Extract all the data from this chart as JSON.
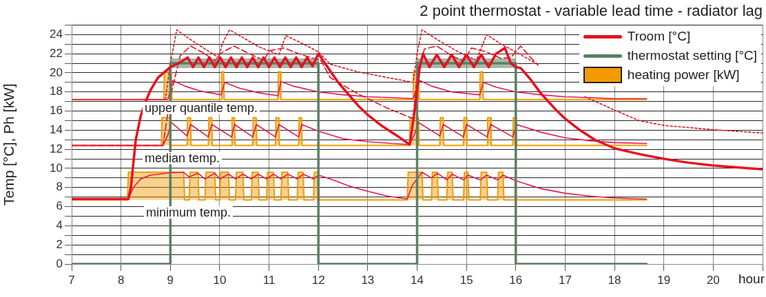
{
  "chart_data": {
    "type": "line",
    "title": "2 point thermostat - variable lead time - radiator lag",
    "xlabel": "hour",
    "ylabel": "Temp [°C], Ph [kW]",
    "xlim": [
      7,
      21
    ],
    "xticks": [
      7,
      8,
      9,
      10,
      11,
      12,
      13,
      14,
      15,
      16,
      17,
      18,
      19,
      20,
      {
        "value": 21,
        "label": null
      }
    ],
    "ylim": [
      0,
      25
    ],
    "yticks": [
      0,
      {
        "value": 1,
        "label": null
      },
      2,
      {
        "value": 3,
        "label": null
      },
      4,
      {
        "value": 5,
        "label": null
      },
      6,
      {
        "value": 7,
        "label": null
      },
      8,
      {
        "value": 9,
        "label": null
      },
      10,
      {
        "value": 11,
        "label": null
      },
      12,
      {
        "value": 13,
        "label": null
      },
      14,
      {
        "value": 15,
        "label": null
      },
      16,
      {
        "value": 17,
        "label": null
      },
      18,
      {
        "value": 19,
        "label": null
      },
      20,
      {
        "value": 21,
        "label": null
      },
      22,
      {
        "value": 23,
        "label": null
      },
      24,
      {
        "value": 25,
        "label": null
      }
    ],
    "grid": true,
    "legend": "top right",
    "marker": "none",
    "annotations": [
      "upper quantile temp.",
      "median temp.",
      "minimum temp."
    ],
    "series": [
      {
        "name": "Troom [°C]",
        "color": "#e8101e",
        "x": [
          7,
          8.15,
          8.2,
          8.3,
          8.4,
          8.5,
          8.6,
          8.75,
          9.0,
          9.2,
          9.35,
          9.46,
          9.57,
          9.68,
          9.79,
          9.9,
          10.01,
          10.12,
          10.23,
          10.34,
          10.45,
          10.56,
          10.67,
          10.78,
          10.89,
          11.0,
          11.11,
          11.22,
          11.33,
          11.44,
          11.55,
          11.66,
          11.77,
          11.88,
          12.0,
          12.2,
          12.4,
          12.6,
          12.8,
          13.0,
          13.3,
          13.6,
          13.85,
          13.95,
          14.05,
          14.12,
          14.25,
          14.4,
          14.55,
          14.7,
          14.85,
          15.0,
          15.15,
          15.3,
          15.45,
          15.6,
          15.78,
          15.9,
          16.0,
          16.1,
          16.3,
          16.5,
          16.8,
          17.0,
          17.3,
          17.6,
          18.0,
          18.5,
          19.0,
          19.5,
          20.0,
          20.5,
          21.0
        ],
        "values": [
          6.8,
          6.8,
          8,
          13,
          15.5,
          17,
          18.2,
          19.5,
          20.6,
          21.1,
          21.6,
          20.6,
          21.6,
          20.6,
          21.6,
          20.6,
          21.6,
          20.6,
          21.6,
          20.6,
          21.6,
          20.6,
          21.6,
          20.6,
          21.6,
          20.6,
          21.6,
          20.6,
          21.6,
          20.6,
          21.6,
          20.6,
          21.6,
          20.7,
          22.0,
          20.5,
          19.0,
          17.8,
          16.6,
          15.6,
          14.4,
          13.4,
          12.5,
          16,
          20.5,
          22.0,
          20.6,
          21.9,
          20.6,
          21.9,
          20.6,
          21.9,
          20.6,
          21.9,
          20.6,
          22.0,
          22.6,
          21.0,
          20.6,
          20.5,
          19.3,
          17.9,
          16.2,
          15.2,
          14.0,
          13.0,
          12.1,
          11.5,
          11.0,
          10.6,
          10.3,
          10.1,
          9.9
        ]
      },
      {
        "name": "thermostat setting [°C]",
        "color": "#5a8064",
        "x": [
          7,
          9,
          9,
          12,
          12,
          14,
          14,
          16,
          16,
          18.65
        ],
        "values": [
          0,
          0,
          21,
          21,
          0,
          0,
          21,
          21,
          0,
          0
        ],
        "lower": [
          null,
          null,
          20.5,
          20.5,
          null,
          null,
          20.5,
          20.5,
          null,
          null
        ],
        "upper": [
          null,
          null,
          21.5,
          21.5,
          null,
          null,
          21.5,
          21.5,
          null,
          null
        ]
      },
      {
        "color": "#e6194b",
        "x": [
          7,
          8.95,
          9.05,
          9.3,
          9.6,
          10.03,
          10.1,
          10.4,
          10.8,
          11.18,
          11.24,
          11.5,
          12.0,
          12.5,
          13.0,
          13.5,
          13.92,
          14.05,
          14.3,
          14.7,
          15.27,
          15.34,
          15.6,
          16.0,
          16.5,
          17.0,
          17.5,
          18.0,
          18.65
        ],
        "values": [
          17.2,
          17.2,
          19.2,
          18.6,
          18.1,
          17.7,
          19.0,
          18.4,
          17.9,
          17.6,
          19.1,
          18.6,
          18.0,
          17.7,
          17.5,
          17.4,
          17.3,
          19.2,
          18.6,
          18.0,
          17.7,
          19.0,
          18.5,
          18.0,
          17.7,
          17.5,
          17.4,
          17.3,
          17.3
        ]
      },
      {
        "color": "#e6194b",
        "x": [
          7,
          8.85,
          8.95,
          9.02,
          9.34,
          9.41,
          9.77,
          9.84,
          10.24,
          10.3,
          10.67,
          10.74,
          11.13,
          11.2,
          11.6,
          11.66,
          12.0,
          12.5,
          13.0,
          13.5,
          13.85,
          13.95,
          14.03,
          14.46,
          14.53,
          14.94,
          15.0,
          15.42,
          15.49,
          15.94,
          16.01,
          16.5,
          17.0,
          17.5,
          18.0,
          18.65
        ],
        "values": [
          12.4,
          12.4,
          13.5,
          14.8,
          13.4,
          14.6,
          13.3,
          14.6,
          13.3,
          14.6,
          13.3,
          14.6,
          13.3,
          14.6,
          13.3,
          14.6,
          13.9,
          13.1,
          12.8,
          12.6,
          12.5,
          13.6,
          14.8,
          13.4,
          14.6,
          13.3,
          14.6,
          13.3,
          14.6,
          13.3,
          14.6,
          13.8,
          13.2,
          12.9,
          12.7,
          12.6
        ]
      },
      {
        "color": "#e6194b",
        "x": [
          7,
          8.15,
          8.25,
          8.4,
          8.6,
          9.0,
          9.27,
          9.38,
          9.56,
          9.7,
          9.9,
          10.0,
          10.18,
          10.32,
          10.47,
          10.64,
          10.78,
          10.95,
          11.09,
          11.24,
          11.38,
          11.57,
          11.69,
          11.9,
          12.0,
          12.3,
          12.6,
          13.0,
          13.4,
          13.8,
          13.9,
          14.1,
          14.29,
          14.41,
          14.6,
          14.71,
          14.94,
          15.03,
          15.28,
          15.41,
          15.63,
          15.74,
          16.0,
          16.5,
          17.0,
          17.5,
          18.0,
          18.65
        ],
        "values": [
          6.8,
          6.8,
          8.0,
          8.9,
          9.3,
          9.55,
          9.6,
          9.1,
          9.5,
          8.9,
          9.5,
          8.9,
          9.4,
          8.9,
          9.4,
          8.9,
          9.4,
          8.9,
          9.4,
          8.9,
          9.4,
          8.9,
          9.4,
          8.9,
          9.3,
          8.8,
          8.2,
          7.6,
          7.1,
          6.8,
          8.2,
          9.6,
          9.0,
          9.5,
          8.8,
          9.4,
          8.8,
          9.3,
          8.8,
          9.3,
          8.8,
          9.3,
          8.7,
          7.9,
          7.4,
          7.1,
          6.9,
          6.8
        ]
      },
      {
        "color": "#e8101e",
        "line_style": "dotted",
        "x": [
          8.9,
          9.0,
          9.13,
          9.4,
          9.7,
          9.98,
          10.05,
          10.2,
          10.5,
          10.8,
          11.2,
          11.34,
          11.7,
          12.0,
          12.24,
          12.8,
          13.4,
          13.92,
          14.0,
          14.1,
          14.4,
          14.8,
          15.2,
          15.41,
          15.7,
          16.0,
          16.3,
          16.45,
          16.9,
          17.4,
          18.0,
          18.5,
          19.0,
          20.0,
          21.0
        ],
        "values": [
          17.2,
          21,
          24.5,
          23.5,
          22.5,
          21.6,
          23,
          24.5,
          23.6,
          22.7,
          21.9,
          23.9,
          23.0,
          22.2,
          20.9,
          20.1,
          19.5,
          19.0,
          22,
          24.5,
          23.5,
          22.3,
          21.3,
          24.0,
          23.0,
          22.2,
          21.3,
          20.9,
          null,
          17.5,
          16.1,
          15.0,
          14.5,
          14.05,
          13.7
        ]
      },
      {
        "color": "#e8101e",
        "line_style": "dashed",
        "x": [
          7,
          8.85,
          9.0,
          9.2,
          9.41,
          9.7,
          9.9,
          10.0,
          10.29,
          10.6,
          10.9,
          11.0,
          11.3,
          11.6,
          11.9,
          12.05,
          12.24,
          12.8,
          13.4,
          13.92,
          14.0,
          14.15,
          14.4,
          14.7,
          14.95,
          15.1,
          15.4,
          15.7,
          15.9,
          16.1,
          16.3,
          16.45
        ],
        "values": [
          12.4,
          12.4,
          17.5,
          21.8,
          22.8,
          22.0,
          21.2,
          22.0,
          22.8,
          22.0,
          21.3,
          22.3,
          22.6,
          22.0,
          21.5,
          21.3,
          19.5,
          17.8,
          16.3,
          15.2,
          20,
          22.5,
          22.8,
          21.8,
          21.2,
          22.6,
          22.2,
          21.5,
          21.6,
          22.8,
          21.6,
          20.8
        ]
      },
      {
        "type": "area",
        "name": "heating power [kW]",
        "color": "#f39a00",
        "x": [
          7,
          8.13,
          8.15,
          9.27,
          9.29,
          9.38,
          9.4,
          9.56,
          9.58,
          9.7,
          9.72,
          9.9,
          9.92,
          10.0,
          10.02,
          10.18,
          10.2,
          10.32,
          10.34,
          10.47,
          10.49,
          10.64,
          10.66,
          10.78,
          10.8,
          10.95,
          10.97,
          11.09,
          11.11,
          11.24,
          11.26,
          11.38,
          11.4,
          11.57,
          11.59,
          11.69,
          11.71,
          11.9,
          11.92,
          12.0,
          12.02,
          13.8,
          13.82,
          14.1,
          14.12,
          14.29,
          14.31,
          14.41,
          14.43,
          14.6,
          14.62,
          14.71,
          14.73,
          14.94,
          14.96,
          15.03,
          15.05,
          15.28,
          15.3,
          15.41,
          15.43,
          15.63,
          15.65,
          15.74,
          15.76,
          15.98,
          15.99,
          16.0,
          16.01,
          18.65
        ],
        "values": [
          6.7,
          6.7,
          9.6,
          9.6,
          6.7,
          6.7,
          9.6,
          9.6,
          6.7,
          6.7,
          9.6,
          9.6,
          6.7,
          6.7,
          9.6,
          9.6,
          6.7,
          6.7,
          9.6,
          9.6,
          6.7,
          6.7,
          9.6,
          9.6,
          6.7,
          6.7,
          9.6,
          9.6,
          6.7,
          6.7,
          9.6,
          9.6,
          6.7,
          6.7,
          9.6,
          9.6,
          6.7,
          6.7,
          9.6,
          9.6,
          6.7,
          6.7,
          9.6,
          9.6,
          6.7,
          6.7,
          9.6,
          9.6,
          6.7,
          6.7,
          9.6,
          9.6,
          6.7,
          6.7,
          9.6,
          9.6,
          6.7,
          6.7,
          9.6,
          9.6,
          6.7,
          6.7,
          9.6,
          9.6,
          6.7,
          6.7,
          9.6,
          9.6,
          6.7,
          6.7
        ]
      },
      {
        "type": "area",
        "color": "#f39a00",
        "x": [
          7,
          8.87,
          8.88,
          9.02,
          9.03,
          10.03,
          10.04,
          10.08,
          10.09,
          11.18,
          11.19,
          11.23,
          11.24,
          13.92,
          13.93,
          14.03,
          14.04,
          15.27,
          15.28,
          15.33,
          15.34,
          18.65
        ],
        "values": [
          17.2,
          17.2,
          20.1,
          20.1,
          17.2,
          17.2,
          20.1,
          20.1,
          17.2,
          17.2,
          20.1,
          20.1,
          17.2,
          17.2,
          20.1,
          20.1,
          17.2,
          17.2,
          20.1,
          20.1,
          17.2,
          17.2
        ]
      },
      {
        "type": "area",
        "color": "#f39a00",
        "x": [
          7,
          8.82,
          8.83,
          9.0,
          9.01,
          9.34,
          9.35,
          9.41,
          9.42,
          9.77,
          9.78,
          9.84,
          9.85,
          10.24,
          10.25,
          10.3,
          10.31,
          10.67,
          10.68,
          10.74,
          10.75,
          11.13,
          11.14,
          11.2,
          11.21,
          11.6,
          11.61,
          11.66,
          11.67,
          13.85,
          13.86,
          14.03,
          14.04,
          14.46,
          14.47,
          14.53,
          14.54,
          14.94,
          14.95,
          15.0,
          15.01,
          15.42,
          15.43,
          15.49,
          15.5,
          15.94,
          15.95,
          16.01,
          16.02,
          18.65
        ],
        "values": [
          12.4,
          12.4,
          15.3,
          15.3,
          12.4,
          12.4,
          15.3,
          15.3,
          12.4,
          12.4,
          15.3,
          15.3,
          12.4,
          12.4,
          15.3,
          15.3,
          12.4,
          12.4,
          15.3,
          15.3,
          12.4,
          12.4,
          15.3,
          15.3,
          12.4,
          12.4,
          15.3,
          15.3,
          12.4,
          12.4,
          15.3,
          15.3,
          12.4,
          12.4,
          15.3,
          15.3,
          12.4,
          12.4,
          15.3,
          15.3,
          12.4,
          12.4,
          15.3,
          15.3,
          12.4,
          12.4,
          15.3,
          15.3,
          12.4,
          12.4
        ]
      }
    ]
  }
}
